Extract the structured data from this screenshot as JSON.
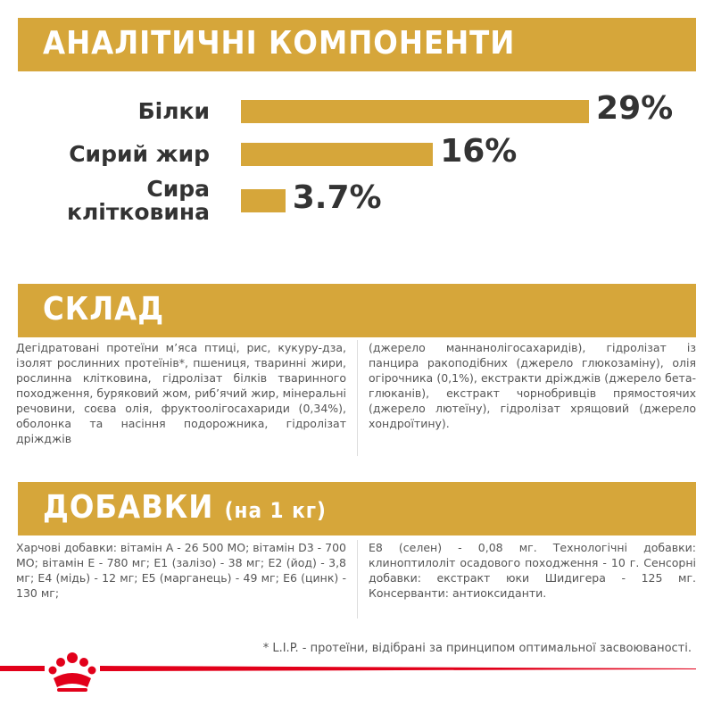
{
  "analysis": {
    "title": "АНАЛІТИЧНІ КОМПОНЕНТИ",
    "items": [
      {
        "label": "Білки",
        "value": 29,
        "value_label": "29%"
      },
      {
        "label": "Сирий жир",
        "value": 16,
        "value_label": "16%"
      },
      {
        "label": "Сира клітковина",
        "value": 3.7,
        "value_label": "3.7%"
      }
    ],
    "color": "#d6a63a"
  },
  "composition": {
    "title": "СКЛАД",
    "columns": [
      "Дегідратовані протеїни м’яса птиці, рис, кукуру-дза, ізолят рослинних протеїнів*, пшениця, тваринні жири, рослинна клітковина, гідролізат білків тваринного походження, буряковий жом, риб’ячий жир, мінеральні речовини, соєва олія, фруктоолігосахариди (0,34%), оболонка та насіння подорожника, гідролізат дріжджів",
      "(джерело маннанолігосахаридів), гідролізат із панцира ракоподібних (джерело глюкозаміну), олія огірочника (0,1%), екстракти дріжджів (джерело бета-глюканів), екстракт чорнобривців прямостоячих (джерело лютеїну), гідролізат хрящовий (джерело хондроїтину)."
    ]
  },
  "additives": {
    "title": "ДОБАВКИ",
    "subtitle": "(на 1 кг)",
    "columns": [
      "Харчові добавки: вітамін А - 26 500 МО; вітамін D3 - 700 МО; вітамін Е - 780 мг; Е1 (залізо) - 38 мг; Е2 (йод) - 3,8 мг; Е4 (мідь) - 12 мг; Е5 (марганець) - 49 мг; Е6 (цинк) - 130 мг;",
      "Е8 (селен) - 0,08 мг. Технологічні добавки: клиноптилоліт осадового походження - 10 г. Сенсорні добавки: екстракт юки Шидигера - 125 мг. Консерванти: антиоксиданти."
    ]
  },
  "footnote": "* L.I.P. - протеїни, відібрані за принципом оптимальної засвоюваності."
}
